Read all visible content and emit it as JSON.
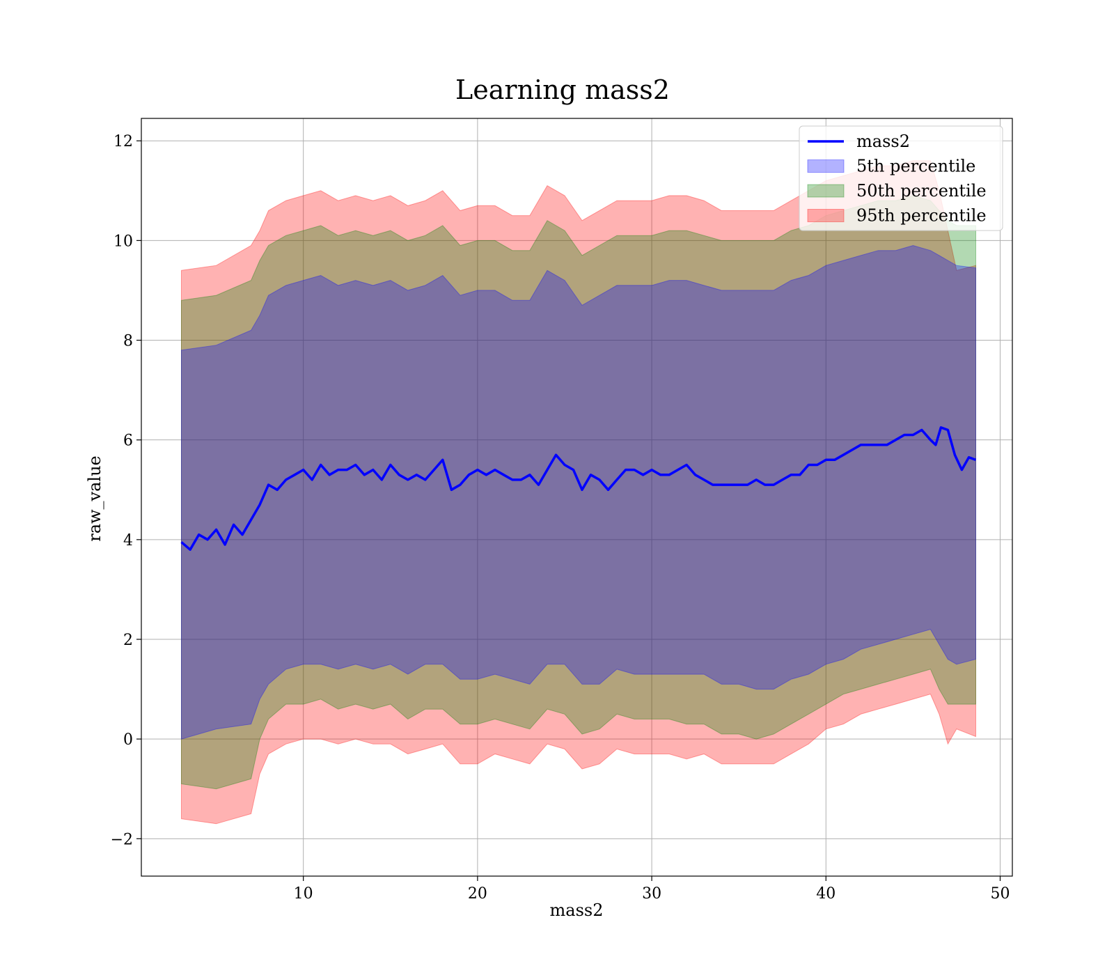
{
  "chart_data": {
    "type": "area",
    "title": "Learning mass2",
    "xlabel": "mass2",
    "ylabel": "raw_value",
    "xlim": [
      0.7,
      50.7
    ],
    "ylim": [
      -2.75,
      12.45
    ],
    "xticks": [
      10,
      20,
      30,
      40,
      50
    ],
    "yticks": [
      -2,
      0,
      2,
      4,
      6,
      8,
      10,
      12
    ],
    "xtick_labels": [
      "10",
      "20",
      "30",
      "40",
      "50"
    ],
    "ytick_labels": [
      "−2",
      "0",
      "2",
      "4",
      "6",
      "8",
      "10",
      "12"
    ],
    "grid": true,
    "legend_position": "top-right",
    "series": [
      {
        "name": "mass2",
        "kind": "line",
        "color": "#0000ff",
        "x": [
          3.0,
          3.5,
          4.0,
          4.5,
          5.0,
          5.5,
          6.0,
          6.5,
          7.0,
          7.5,
          8.0,
          8.5,
          9.0,
          9.5,
          10.0,
          10.5,
          11.0,
          11.5,
          12.0,
          12.5,
          13.0,
          13.5,
          14.0,
          14.5,
          15.0,
          15.5,
          16.0,
          16.5,
          17.0,
          17.5,
          18.0,
          18.5,
          19.0,
          19.5,
          20.0,
          20.5,
          21.0,
          21.5,
          22.0,
          22.5,
          23.0,
          23.5,
          24.0,
          24.5,
          25.0,
          25.5,
          26.0,
          26.5,
          27.0,
          27.5,
          28.0,
          28.5,
          29.0,
          29.5,
          30.0,
          30.5,
          31.0,
          31.5,
          32.0,
          32.5,
          33.0,
          33.5,
          34.0,
          34.5,
          35.0,
          35.5,
          36.0,
          36.5,
          37.0,
          37.5,
          38.0,
          38.5,
          39.0,
          39.5,
          40.0,
          40.5,
          41.0,
          41.5,
          42.0,
          42.5,
          43.0,
          43.5,
          44.0,
          44.5,
          45.0,
          45.5,
          46.0,
          46.3,
          46.6,
          47.0,
          47.4,
          47.8,
          48.2,
          48.6
        ],
        "values": [
          3.95,
          3.8,
          4.1,
          4.0,
          4.2,
          3.9,
          4.3,
          4.1,
          4.4,
          4.7,
          5.1,
          5.0,
          5.2,
          5.3,
          5.4,
          5.2,
          5.5,
          5.3,
          5.4,
          5.4,
          5.5,
          5.3,
          5.4,
          5.2,
          5.5,
          5.3,
          5.2,
          5.3,
          5.2,
          5.4,
          5.6,
          5.0,
          5.1,
          5.3,
          5.4,
          5.3,
          5.4,
          5.3,
          5.2,
          5.2,
          5.3,
          5.1,
          5.4,
          5.7,
          5.5,
          5.4,
          5.0,
          5.3,
          5.2,
          5.0,
          5.2,
          5.4,
          5.4,
          5.3,
          5.4,
          5.3,
          5.3,
          5.4,
          5.5,
          5.3,
          5.2,
          5.1,
          5.1,
          5.1,
          5.1,
          5.1,
          5.2,
          5.1,
          5.1,
          5.2,
          5.3,
          5.3,
          5.5,
          5.5,
          5.6,
          5.6,
          5.7,
          5.8,
          5.9,
          5.9,
          5.9,
          5.9,
          6.0,
          6.1,
          6.1,
          6.2,
          6.0,
          5.9,
          6.25,
          6.2,
          5.7,
          5.4,
          5.65,
          5.6
        ]
      },
      {
        "name": "5th percentile",
        "kind": "band",
        "color": "#0000ff",
        "x": [
          3.0,
          5.0,
          7.0,
          7.5,
          8.0,
          9.0,
          10.0,
          11.0,
          12.0,
          13.0,
          14.0,
          15.0,
          16.0,
          17.0,
          18.0,
          19.0,
          20.0,
          21.0,
          22.0,
          23.0,
          24.0,
          25.0,
          26.0,
          27.0,
          28.0,
          29.0,
          30.0,
          31.0,
          32.0,
          33.0,
          34.0,
          35.0,
          36.0,
          37.0,
          38.0,
          39.0,
          40.0,
          41.0,
          42.0,
          43.0,
          44.0,
          45.0,
          46.0,
          46.5,
          47.0,
          47.5,
          48.6
        ],
        "lower": [
          0.0,
          0.2,
          0.3,
          0.8,
          1.1,
          1.4,
          1.5,
          1.5,
          1.4,
          1.5,
          1.4,
          1.5,
          1.3,
          1.5,
          1.5,
          1.2,
          1.2,
          1.3,
          1.2,
          1.1,
          1.5,
          1.5,
          1.1,
          1.1,
          1.4,
          1.3,
          1.3,
          1.3,
          1.3,
          1.3,
          1.1,
          1.1,
          1.0,
          1.0,
          1.2,
          1.3,
          1.5,
          1.6,
          1.8,
          1.9,
          2.0,
          2.1,
          2.2,
          1.9,
          1.6,
          1.5,
          1.6
        ],
        "upper": [
          7.8,
          7.9,
          8.2,
          8.5,
          8.9,
          9.1,
          9.2,
          9.3,
          9.1,
          9.2,
          9.1,
          9.2,
          9.0,
          9.1,
          9.3,
          8.9,
          9.0,
          9.0,
          8.8,
          8.8,
          9.4,
          9.2,
          8.7,
          8.9,
          9.1,
          9.1,
          9.1,
          9.2,
          9.2,
          9.1,
          9.0,
          9.0,
          9.0,
          9.0,
          9.2,
          9.3,
          9.5,
          9.6,
          9.7,
          9.8,
          9.8,
          9.9,
          9.8,
          9.7,
          9.6,
          9.5,
          9.45
        ]
      },
      {
        "name": "50th percentile",
        "kind": "band",
        "color": "#008000",
        "x": [
          3.0,
          5.0,
          7.0,
          7.5,
          8.0,
          9.0,
          10.0,
          11.0,
          12.0,
          13.0,
          14.0,
          15.0,
          16.0,
          17.0,
          18.0,
          19.0,
          20.0,
          21.0,
          22.0,
          23.0,
          24.0,
          25.0,
          26.0,
          27.0,
          28.0,
          29.0,
          30.0,
          31.0,
          32.0,
          33.0,
          34.0,
          35.0,
          36.0,
          37.0,
          38.0,
          39.0,
          40.0,
          41.0,
          42.0,
          43.0,
          44.0,
          45.0,
          46.0,
          46.5,
          47.0,
          47.5,
          48.6
        ],
        "lower": [
          -0.9,
          -1.0,
          -0.8,
          0.0,
          0.4,
          0.7,
          0.7,
          0.8,
          0.6,
          0.7,
          0.6,
          0.7,
          0.4,
          0.6,
          0.6,
          0.3,
          0.3,
          0.4,
          0.3,
          0.2,
          0.6,
          0.5,
          0.1,
          0.2,
          0.5,
          0.4,
          0.4,
          0.4,
          0.3,
          0.3,
          0.1,
          0.1,
          0.0,
          0.1,
          0.3,
          0.5,
          0.7,
          0.9,
          1.0,
          1.1,
          1.2,
          1.3,
          1.4,
          1.0,
          0.7,
          0.7,
          0.7
        ],
        "upper": [
          8.8,
          8.9,
          9.2,
          9.6,
          9.9,
          10.1,
          10.2,
          10.3,
          10.1,
          10.2,
          10.1,
          10.2,
          10.0,
          10.1,
          10.3,
          9.9,
          10.0,
          10.0,
          9.8,
          9.8,
          10.4,
          10.2,
          9.7,
          9.9,
          10.1,
          10.1,
          10.1,
          10.2,
          10.2,
          10.1,
          10.0,
          10.0,
          10.0,
          10.0,
          10.2,
          10.3,
          10.5,
          10.6,
          10.7,
          10.8,
          10.8,
          10.9,
          10.8,
          10.6,
          10.4,
          10.3,
          10.3
        ]
      },
      {
        "name": "95th percentile",
        "kind": "band",
        "color": "#ff0000",
        "x": [
          3.0,
          5.0,
          7.0,
          7.5,
          8.0,
          9.0,
          10.0,
          11.0,
          12.0,
          13.0,
          14.0,
          15.0,
          16.0,
          17.0,
          18.0,
          19.0,
          20.0,
          21.0,
          22.0,
          23.0,
          24.0,
          25.0,
          26.0,
          27.0,
          28.0,
          29.0,
          30.0,
          31.0,
          32.0,
          33.0,
          34.0,
          35.0,
          36.0,
          37.0,
          38.0,
          39.0,
          40.0,
          41.0,
          42.0,
          43.0,
          44.0,
          45.0,
          46.0,
          46.5,
          47.0,
          47.5,
          48.6
        ],
        "lower": [
          -1.6,
          -1.7,
          -1.5,
          -0.7,
          -0.3,
          -0.1,
          0.0,
          0.0,
          -0.1,
          0.0,
          -0.1,
          -0.1,
          -0.3,
          -0.2,
          -0.1,
          -0.5,
          -0.5,
          -0.3,
          -0.4,
          -0.5,
          -0.1,
          -0.2,
          -0.6,
          -0.5,
          -0.2,
          -0.3,
          -0.3,
          -0.3,
          -0.4,
          -0.3,
          -0.5,
          -0.5,
          -0.5,
          -0.5,
          -0.3,
          -0.1,
          0.2,
          0.3,
          0.5,
          0.6,
          0.7,
          0.8,
          0.9,
          0.5,
          -0.1,
          0.2,
          0.05
        ],
        "upper": [
          9.4,
          9.5,
          9.9,
          10.2,
          10.6,
          10.8,
          10.9,
          11.0,
          10.8,
          10.9,
          10.8,
          10.9,
          10.7,
          10.8,
          11.0,
          10.6,
          10.7,
          10.7,
          10.5,
          10.5,
          11.1,
          10.9,
          10.4,
          10.6,
          10.8,
          10.8,
          10.8,
          10.9,
          10.9,
          10.8,
          10.6,
          10.6,
          10.6,
          10.6,
          10.8,
          11.0,
          11.2,
          11.3,
          11.4,
          11.5,
          11.5,
          11.6,
          11.6,
          11.0,
          10.2,
          9.4,
          9.5
        ]
      }
    ]
  }
}
